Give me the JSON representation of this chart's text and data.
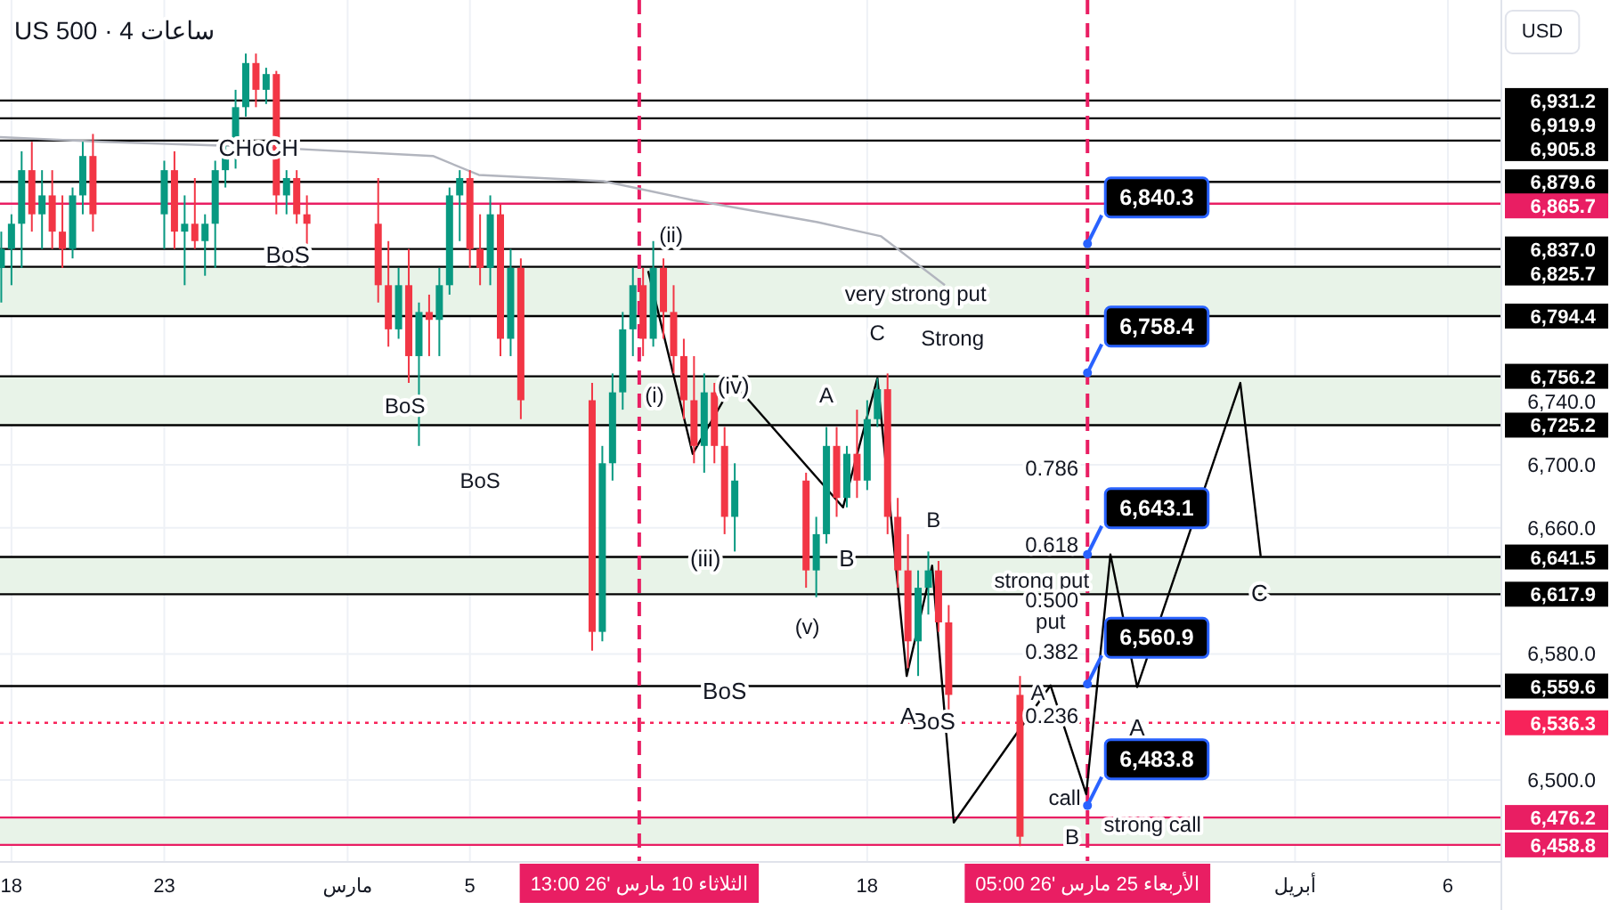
{
  "chart_data": {
    "type": "candlestick",
    "title": "US 500 · 4 ساعات",
    "x": [
      "2026-02-17T16:00",
      "2026-02-18T00:00",
      "2026-02-18T08:00",
      "2026-02-18T16:00",
      "2026-02-19T00:00",
      "2026-02-19T08:00",
      "2026-02-19T16:00",
      "2026-02-20T00:00",
      "2026-02-20T08:00",
      "2026-02-20T16:00",
      "2026-02-23T00:00",
      "2026-02-23T08:00",
      "2026-02-23T16:00",
      "2026-02-24T00:00",
      "2026-02-24T08:00",
      "2026-02-24T16:00",
      "2026-02-25T00:00",
      "2026-02-25T08:00",
      "2026-02-25T16:00",
      "2026-02-26T00:00",
      "2026-02-26T08:00",
      "2026-02-26T16:00",
      "2026-02-27T00:00",
      "2026-02-27T08:00",
      "2026-02-27T16:00",
      "2026-03-02T00:00",
      "2026-03-02T08:00",
      "2026-03-02T16:00",
      "2026-03-03T00:00",
      "2026-03-03T08:00",
      "2026-03-03T16:00",
      "2026-03-04T00:00",
      "2026-03-04T08:00",
      "2026-03-04T16:00",
      "2026-03-05T00:00",
      "2026-03-05T08:00",
      "2026-03-05T16:00",
      "2026-03-06T00:00",
      "2026-03-06T08:00",
      "2026-03-06T16:00",
      "2026-03-09T00:00",
      "2026-03-09T08:00",
      "2026-03-09T16:00",
      "2026-03-10T00:00",
      "2026-03-10T08:00",
      "2026-03-10T16:00",
      "2026-03-11T00:00",
      "2026-03-11T08:00",
      "2026-03-11T16:00",
      "2026-03-12T00:00",
      "2026-03-12T08:00",
      "2026-03-12T16:00",
      "2026-03-13T00:00",
      "2026-03-13T08:00",
      "2026-03-13T16:00",
      "2026-03-16T00:00",
      "2026-03-16T08:00",
      "2026-03-16T16:00",
      "2026-03-17T00:00",
      "2026-03-17T08:00",
      "2026-03-17T16:00",
      "2026-03-18T00:00",
      "2026-03-18T08:00",
      "2026-03-18T16:00",
      "2026-03-19T00:00",
      "2026-03-19T08:00",
      "2026-03-19T16:00",
      "2026-03-20T00:00",
      "2026-03-20T08:00",
      "2026-03-20T16:00",
      "2026-03-23T00:00"
    ],
    "ohlc": [
      [
        6825,
        6848,
        6803,
        6837
      ],
      [
        6837,
        6859,
        6814,
        6853
      ],
      [
        6853,
        6899,
        6825,
        6887
      ],
      [
        6887,
        6905,
        6848,
        6859
      ],
      [
        6859,
        6887,
        6837,
        6871
      ],
      [
        6871,
        6887,
        6837,
        6848
      ],
      [
        6848,
        6871,
        6825,
        6837
      ],
      [
        6837,
        6876,
        6831,
        6871
      ],
      [
        6871,
        6905,
        6859,
        6896
      ],
      [
        6896,
        6910,
        6848,
        6859
      ],
      [
        6859,
        6893,
        6837,
        6887
      ],
      [
        6887,
        6899,
        6837,
        6848
      ],
      [
        6848,
        6871,
        6814,
        6853
      ],
      [
        6853,
        6882,
        6837,
        6842
      ],
      [
        6842,
        6859,
        6820,
        6853
      ],
      [
        6853,
        6893,
        6825,
        6887
      ],
      [
        6887,
        6905,
        6876,
        6899
      ],
      [
        6899,
        6938,
        6888,
        6927
      ],
      [
        6927,
        6961,
        6921,
        6955
      ],
      [
        6955,
        6961,
        6927,
        6938
      ],
      [
        6938,
        6952,
        6929,
        6948
      ],
      [
        6948,
        6950,
        6859,
        6871
      ],
      [
        6871,
        6887,
        6859,
        6882
      ],
      [
        6882,
        6887,
        6853,
        6859
      ],
      [
        6859,
        6871,
        6837,
        6853
      ],
      [
        6853,
        6882,
        6803,
        6814
      ],
      [
        6814,
        6842,
        6775,
        6786
      ],
      [
        6786,
        6825,
        6780,
        6814
      ],
      [
        6814,
        6837,
        6752,
        6769
      ],
      [
        6769,
        6803,
        6712,
        6797
      ],
      [
        6797,
        6808,
        6769,
        6792
      ],
      [
        6792,
        6825,
        6769,
        6814
      ],
      [
        6814,
        6876,
        6808,
        6871
      ],
      [
        6871,
        6887,
        6842,
        6882
      ],
      [
        6882,
        6887,
        6825,
        6837
      ],
      [
        6837,
        6859,
        6814,
        6825
      ],
      [
        6825,
        6871,
        6814,
        6859
      ],
      [
        6859,
        6865,
        6769,
        6780
      ],
      [
        6780,
        6837,
        6769,
        6825
      ],
      [
        6825,
        6831,
        6729,
        6741
      ],
      [
        6741,
        6752,
        6582,
        6594
      ],
      [
        6594,
        6712,
        6588,
        6701
      ],
      [
        6701,
        6758,
        6690,
        6746
      ],
      [
        6746,
        6797,
        6735,
        6786
      ],
      [
        6786,
        6825,
        6769,
        6814
      ],
      [
        6814,
        6825,
        6769,
        6780
      ],
      [
        6780,
        6842,
        6775,
        6825
      ],
      [
        6825,
        6831,
        6780,
        6797
      ],
      [
        6797,
        6814,
        6758,
        6769
      ],
      [
        6769,
        6780,
        6729,
        6741
      ],
      [
        6741,
        6769,
        6701,
        6712
      ],
      [
        6712,
        6758,
        6695,
        6746
      ],
      [
        6746,
        6752,
        6701,
        6712
      ],
      [
        6712,
        6724,
        6656,
        6667
      ],
      [
        6667,
        6701,
        6645,
        6690
      ],
      [
        6690,
        6695,
        6622,
        6633
      ],
      [
        6633,
        6667,
        6616,
        6656
      ],
      [
        6656,
        6724,
        6650,
        6712
      ],
      [
        6712,
        6724,
        6667,
        6679
      ],
      [
        6679,
        6712,
        6673,
        6707
      ],
      [
        6707,
        6735,
        6679,
        6690
      ],
      [
        6690,
        6741,
        6684,
        6729
      ],
      [
        6729,
        6755,
        6724,
        6748
      ],
      [
        6748,
        6758,
        6656,
        6667
      ],
      [
        6667,
        6679,
        6622,
        6633
      ],
      [
        6633,
        6656,
        6571,
        6588
      ],
      [
        6588,
        6633,
        6566,
        6622
      ],
      [
        6622,
        6645,
        6605,
        6633
      ],
      [
        6633,
        6639,
        6594,
        6600
      ],
      [
        6600,
        6611,
        6543,
        6554
      ],
      [
        6554,
        6566,
        6458,
        6464
      ]
    ],
    "colors": [
      "#089981",
      "#089981",
      "#089981",
      "#f23645",
      "#089981",
      "#f23645",
      "#f23645",
      "#089981",
      "#089981",
      "#f23645",
      "#089981",
      "#f23645",
      "#089981",
      "#f23645",
      "#089981",
      "#089981",
      "#089981",
      "#089981",
      "#089981",
      "#f23645",
      "#089981",
      "#f23645",
      "#089981",
      "#f23645",
      "#f23645",
      "#f23645",
      "#f23645",
      "#089981",
      "#f23645",
      "#089981",
      "#f23645",
      "#089981",
      "#089981",
      "#089981",
      "#f23645",
      "#f23645",
      "#089981",
      "#f23645",
      "#089981",
      "#f23645",
      "#f23645",
      "#089981",
      "#089981",
      "#089981",
      "#089981",
      "#f23645",
      "#089981",
      "#f23645",
      "#f23645",
      "#f23645",
      "#f23645",
      "#089981",
      "#f23645",
      "#f23645",
      "#089981",
      "#f23645",
      "#089981",
      "#089981",
      "#f23645",
      "#089981",
      "#f23645",
      "#089981",
      "#089981",
      "#f23645",
      "#f23645",
      "#f23645",
      "#089981",
      "#089981",
      "#f23645",
      "#f23645",
      "#f23645"
    ],
    "series": [
      {
        "type": "line",
        "color": "#b2b5be",
        "x": [
          "2026-02-17T15:00",
          "2026-02-20T23:00",
          "2026-02-25T21:00",
          "2026-03-03T19:00",
          "2026-03-05T07:00",
          "2026-03-09T09:00",
          "2026-03-12T07:00",
          "2026-03-16T09:00",
          "2026-03-18T11:00",
          "2026-03-20T13:00"
        ],
        "values": [
          6908,
          6905,
          6902,
          6896,
          6884,
          6880,
          6868,
          6854,
          6845,
          6814
        ]
      },
      {
        "type": "line",
        "color": "#000000",
        "x": [
          "2026-03-10T20:00",
          "2026-03-12T07:00",
          "2026-03-13T15:00",
          "2026-03-17T05:00",
          "2026-03-18T08:00",
          "2026-03-19T07:00",
          "2026-03-20T03:00",
          "2026-03-20T20:00",
          "2026-03-24T00:00",
          "2026-03-25T04:00",
          "2026-03-25T23:00",
          "2026-03-26T20:00",
          "2026-03-30T05:00",
          "2026-03-30T21:00"
        ],
        "values": [
          6823,
          6707,
          6752,
          6673,
          6755,
          6566,
          6636,
          6473,
          6560,
          6491,
          6643.1,
          6559,
          6752,
          6642
        ]
      }
    ],
    "xlim": [
      "2026-02-17T15:00",
      "2026-04-07T18:00"
    ],
    "xticks": [
      {
        "value": "2026-02-18",
        "label": "18"
      },
      {
        "value": "2026-02-23",
        "label": "23"
      },
      {
        "value": "2026-03-01",
        "label": "مارس"
      },
      {
        "value": "2026-03-05",
        "label": "5"
      },
      {
        "value": "2026-03-18",
        "label": "18"
      },
      {
        "value": "2026-04-01",
        "label": "أبريل"
      },
      {
        "value": "2026-04-06",
        "label": "6"
      }
    ],
    "ylim": [
      6448,
      6995
    ],
    "yticks": [
      {
        "value": 6500,
        "label": "6,500.0"
      },
      {
        "value": 6580,
        "label": "6,580.0"
      },
      {
        "value": 6660,
        "label": "6,660.0"
      },
      {
        "value": 6700,
        "label": "6,700.0"
      },
      {
        "value": 6740,
        "label": "6,740.0"
      }
    ],
    "grid": true,
    "line_style": "solid",
    "bands": [
      {
        "axis": "y",
        "from": 6794.4,
        "to": 6825.7,
        "color": "#e8f3e8"
      },
      {
        "axis": "y",
        "from": 6725.2,
        "to": 6756.2,
        "color": "#e8f3e8"
      },
      {
        "axis": "y",
        "from": 6617.9,
        "to": 6641.5,
        "color": "#e8f3e8"
      },
      {
        "axis": "y",
        "from": 6458.8,
        "to": 6476.2,
        "color": "#e8f3e8"
      }
    ],
    "ref_lines": [
      {
        "axis": "y",
        "value": 6931.2,
        "label": "6,931.2",
        "color": "#000000"
      },
      {
        "axis": "y",
        "value": 6919.9,
        "label": "6,919.9",
        "color": "#000000"
      },
      {
        "axis": "y",
        "value": 6905.8,
        "label": "6,905.8",
        "color": "#000000"
      },
      {
        "axis": "y",
        "value": 6879.6,
        "label": "6,879.6",
        "color": "#000000"
      },
      {
        "axis": "y",
        "value": 6865.7,
        "label": "6,865.7",
        "color": "#e91e63"
      },
      {
        "axis": "y",
        "value": 6837.0,
        "label": "6,837.0",
        "color": "#000000"
      },
      {
        "axis": "y",
        "value": 6825.7,
        "label": "6,825.7",
        "color": "#000000"
      },
      {
        "axis": "y",
        "value": 6794.4,
        "label": "6,794.4",
        "color": "#000000"
      },
      {
        "axis": "y",
        "value": 6756.2,
        "label": "6,756.2",
        "color": "#000000"
      },
      {
        "axis": "y",
        "value": 6725.2,
        "label": "6,725.2",
        "color": "#000000"
      },
      {
        "axis": "y",
        "value": 6641.5,
        "label": "6,641.5",
        "color": "#000000"
      },
      {
        "axis": "y",
        "value": 6617.9,
        "label": "6,617.9",
        "color": "#000000"
      },
      {
        "axis": "y",
        "value": 6559.6,
        "label": "6,559.6",
        "color": "#000000"
      },
      {
        "axis": "y",
        "value": 6536.3,
        "label": "6,536.3",
        "color": "#f7235a",
        "line_style": "dotted"
      },
      {
        "axis": "y",
        "value": 6476.2,
        "label": "6,476.2",
        "color": "#e91e63"
      },
      {
        "axis": "y",
        "value": 6458.8,
        "label": "6,458.8",
        "color": "#e91e63"
      },
      {
        "axis": "x",
        "value": "2026-03-10T13:00",
        "label": "الثلاثاء 10 مارس '26 13:00",
        "color": "#e91e63",
        "line_style": "dashed"
      },
      {
        "axis": "x",
        "value": "2026-03-25T05:00",
        "label": "الأربعاء 25 مارس '26 05:00",
        "color": "#e91e63",
        "line_style": "dashed"
      }
    ],
    "annotations": [
      "USD",
      {
        "text": "CHoCH",
        "x": "2026-02-26T02:00",
        "y": 6902
      },
      {
        "text": "BoS",
        "x": "2026-02-27T01:00",
        "y": 6834
      },
      "BoS",
      "BoS",
      {
        "text": "BoS",
        "x": "2026-03-13T08:00",
        "y": 6557
      },
      {
        "text": "BoS",
        "x": "2026-03-20T04:00",
        "y": 6538
      },
      "(ii)",
      "(i)",
      {
        "text": "(iv)",
        "x": "2026-03-13T15:00",
        "y": 6751
      },
      {
        "text": "(iii)",
        "x": "2026-03-12T17:00",
        "y": 6641
      },
      "(v)",
      "A",
      "C",
      {
        "text": "B",
        "x": "2026-03-17T08:00",
        "y": 6641
      },
      "B",
      {
        "text": "A",
        "x": "2026-03-19T08:00",
        "y": 6541
      },
      "A",
      {
        "text": "A",
        "x": "2026-03-26T20:00",
        "y": 6534
      },
      {
        "text": "C",
        "x": "2026-03-30T20:00",
        "y": 6619
      },
      "B",
      "very strong put",
      "Strong",
      "strong put",
      "put",
      "call",
      "strong call",
      "0.786",
      "0.618",
      "0.500",
      "0.382",
      "0.236",
      {
        "text": "6,840.3",
        "x": "2026-03-25T05:00",
        "y": 6840.3
      },
      {
        "text": "6,758.4",
        "x": "2026-03-25T05:00",
        "y": 6758.4
      },
      {
        "text": "6,643.1",
        "x": "2026-03-25T05:00",
        "y": 6643.1
      },
      {
        "text": "6,560.9",
        "x": "2026-03-25T05:00",
        "y": 6560.9
      },
      {
        "text": "6,483.8",
        "x": "2026-03-25T05:00",
        "y": 6483.8
      }
    ]
  }
}
